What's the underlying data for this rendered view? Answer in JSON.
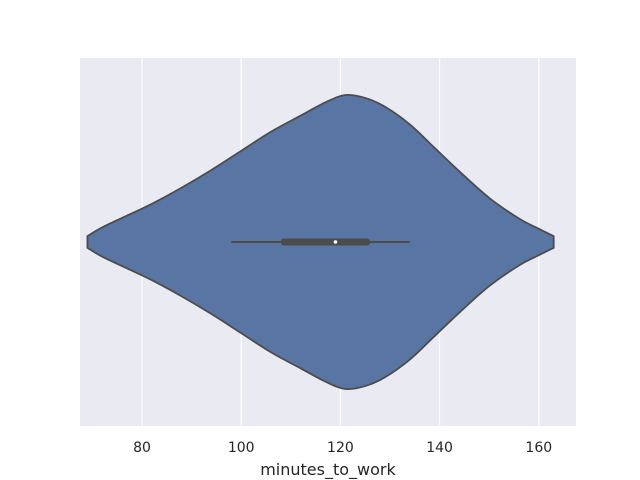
{
  "chart_data": {
    "type": "violin",
    "orientation": "horizontal",
    "title": "",
    "xlabel": "minutes_to_work",
    "ylabel": "",
    "xlim": [
      67.5,
      167.5
    ],
    "x_ticks": [
      80,
      100,
      120,
      140,
      160
    ],
    "x_tick_labels": [
      "80",
      "100",
      "120",
      "140",
      "160"
    ],
    "grid": true,
    "colors": {
      "background": "#eaeaf2",
      "grid": "#ffffff",
      "violin_fill": "#5875a4",
      "violin_edge": "#4c4c4c",
      "box": "#4c4c4c",
      "median_marker": "#ffffff"
    },
    "violin": {
      "min": 69,
      "max": 163,
      "density_profile": [
        [
          69,
          0.04
        ],
        [
          72,
          0.1
        ],
        [
          77,
          0.18
        ],
        [
          82,
          0.26
        ],
        [
          88,
          0.37
        ],
        [
          94,
          0.49
        ],
        [
          100,
          0.62
        ],
        [
          106,
          0.75
        ],
        [
          112,
          0.86
        ],
        [
          117,
          0.95
        ],
        [
          121,
          1.0
        ],
        [
          125,
          0.98
        ],
        [
          129,
          0.92
        ],
        [
          134,
          0.8
        ],
        [
          139,
          0.64
        ],
        [
          144,
          0.48
        ],
        [
          150,
          0.3
        ],
        [
          156,
          0.16
        ],
        [
          160,
          0.09
        ],
        [
          163,
          0.04
        ]
      ]
    },
    "box": {
      "whisker_low": 98,
      "q1": 108,
      "median": 119,
      "q3": 126,
      "whisker_high": 134
    }
  }
}
